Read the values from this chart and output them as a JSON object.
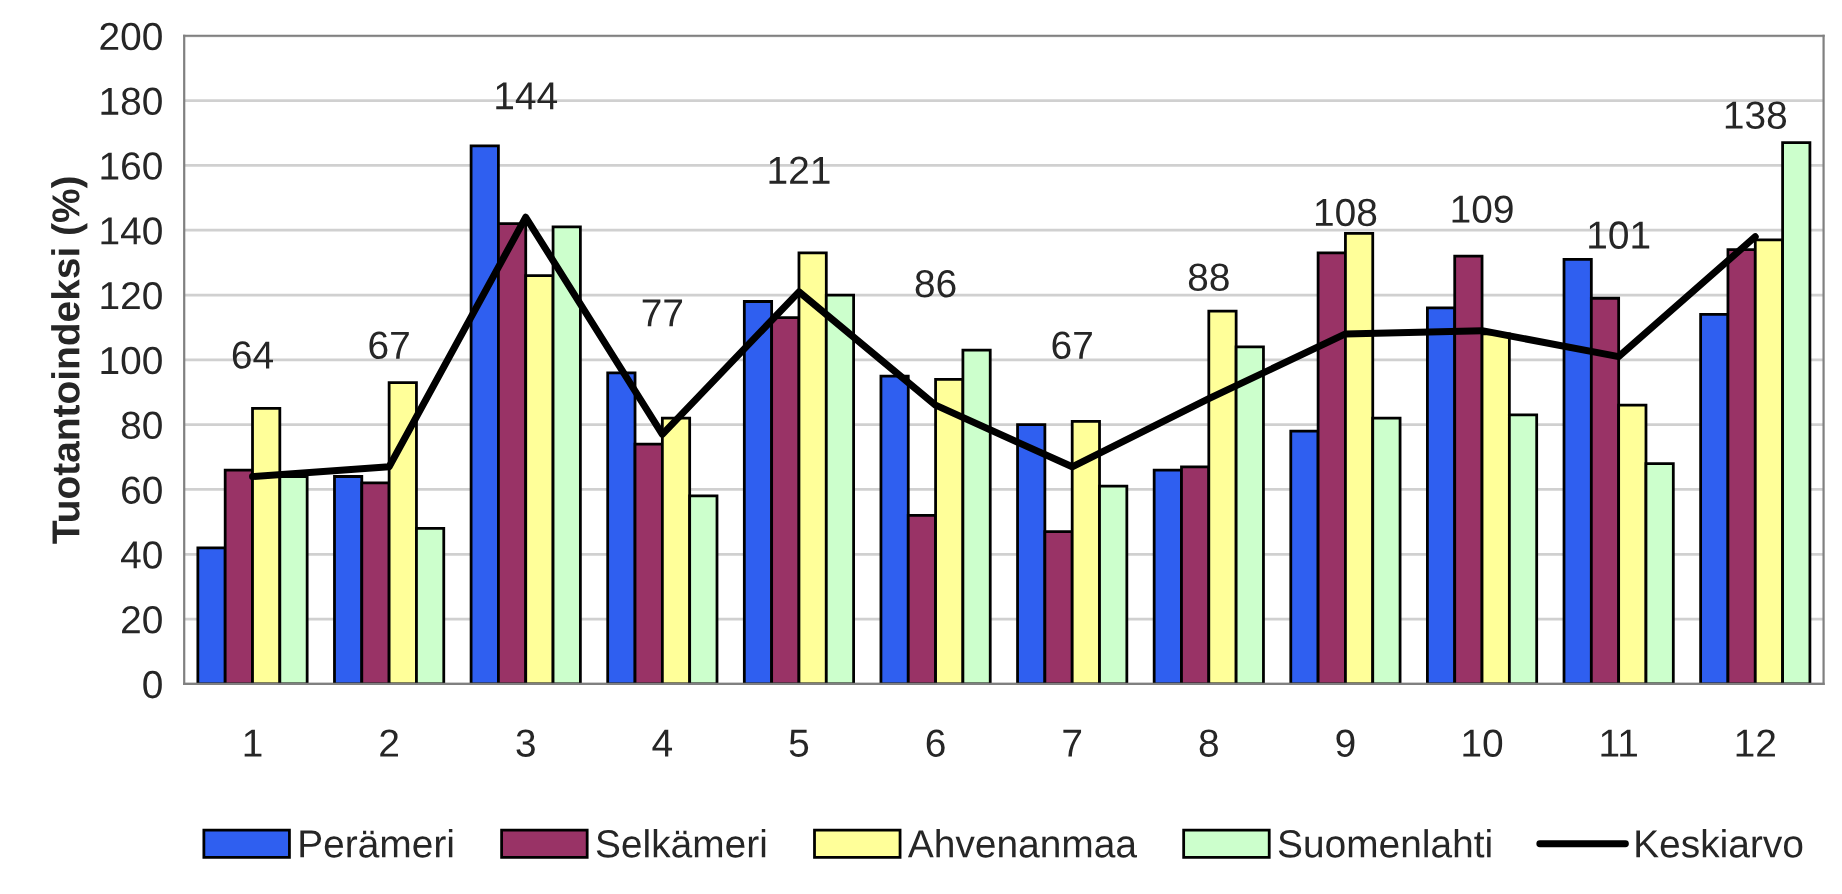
{
  "chart_data": {
    "type": "bar",
    "ylabel": "Tuotantoindeksi (%)",
    "categories": [
      "1",
      "2",
      "3",
      "4",
      "5",
      "6",
      "7",
      "8",
      "9",
      "10",
      "11",
      "12"
    ],
    "series": [
      {
        "name": "Perämeri",
        "color": "#2f5ff0",
        "values": [
          42,
          64,
          166,
          96,
          118,
          95,
          80,
          66,
          78,
          116,
          131,
          114
        ]
      },
      {
        "name": "Selkämeri",
        "color": "#993366",
        "values": [
          66,
          62,
          142,
          74,
          113,
          52,
          47,
          67,
          133,
          132,
          119,
          134
        ]
      },
      {
        "name": "Ahvenanmaa",
        "color": "#ffff99",
        "values": [
          85,
          93,
          126,
          82,
          133,
          94,
          81,
          115,
          139,
          108,
          86,
          137
        ]
      },
      {
        "name": "Suomenlahti",
        "color": "#ccffcc",
        "values": [
          64,
          48,
          141,
          58,
          120,
          103,
          61,
          104,
          82,
          83,
          68,
          167
        ]
      },
      {
        "name": "Keskiarvo",
        "type": "line",
        "color": "#000000",
        "values": [
          64,
          67,
          144,
          77,
          121,
          86,
          67,
          88,
          108,
          109,
          101,
          138
        ],
        "value_labels": [
          "64",
          "67",
          "144",
          "77",
          "121",
          "86",
          "67",
          "88",
          "108",
          "109",
          "101",
          "138"
        ]
      }
    ],
    "ylim": [
      0,
      200
    ],
    "yticks": [
      0,
      20,
      40,
      60,
      80,
      100,
      120,
      140,
      160,
      180,
      200
    ],
    "grid": "y",
    "legend": "bottom",
    "marker": "none",
    "line_style": "solid"
  }
}
